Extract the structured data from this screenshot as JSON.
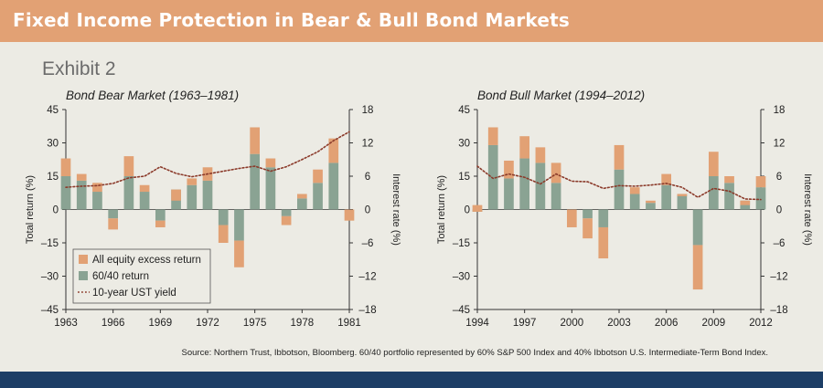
{
  "header": {
    "title": "Fixed Income Protection in Bear & Bull Bond Markets"
  },
  "exhibit_label": "Exhibit 2",
  "source_note": "Source: Northern Trust, Ibbotson, Bloomberg. 60/40 portfolio represented by 60% S&P 500 Index and 40% Ibbotson U.S. Intermediate-Term Bond Index.",
  "colors": {
    "equity_excess": "#e2a174",
    "sixty_forty": "#8aa393",
    "ust_yield": "#8b3a2a",
    "header_bg": "#e2a174",
    "footer_bar": "#1d3e66",
    "background": "#ecebe4"
  },
  "legend": {
    "equity": "All equity excess return",
    "sixty_forty": "60/40 return",
    "ust": "10-year UST yield"
  },
  "chart_data": [
    {
      "type": "bar",
      "title": "Bond Bear Market (1963–1981)",
      "ylabel": "Total return (%)",
      "y2label": "Interest rate (%)",
      "ylim": [
        -45,
        45
      ],
      "y2lim": [
        -18,
        18
      ],
      "yticks": [
        "45",
        "30",
        "15",
        "0",
        "–15",
        "–30",
        "–45"
      ],
      "y2ticks": [
        "18",
        "12",
        "6",
        "0",
        "–6",
        "–12",
        "–18"
      ],
      "xlim": [
        1963,
        1981
      ],
      "xticks": [
        "1963",
        "1966",
        "1969",
        "1972",
        "1975",
        "1978",
        "1981"
      ],
      "years": [
        1963,
        1964,
        1965,
        1966,
        1967,
        1968,
        1969,
        1970,
        1971,
        1972,
        1973,
        1974,
        1975,
        1976,
        1977,
        1978,
        1979,
        1980,
        1981
      ],
      "series": [
        {
          "name": "60/40 return",
          "values": [
            15,
            13,
            8,
            -4,
            15,
            8,
            -5,
            9,
            11,
            13,
            -7,
            -14,
            25,
            19,
            -3,
            5,
            12,
            21,
            0
          ]
        },
        {
          "name": "All equity excess return",
          "values": [
            8,
            3,
            4,
            -5,
            9,
            3,
            -3,
            -5,
            3,
            6,
            -8,
            -12,
            12,
            4,
            -4,
            2,
            6,
            11,
            -5
          ]
        },
        {
          "name": "10-year UST yield",
          "values": [
            4.0,
            4.2,
            4.3,
            4.7,
            5.7,
            6.0,
            7.7,
            6.5,
            5.9,
            6.4,
            6.9,
            7.4,
            7.8,
            6.9,
            7.7,
            9.0,
            10.4,
            12.4,
            14.0
          ]
        }
      ]
    },
    {
      "type": "bar",
      "title": "Bond Bull Market (1994–2012)",
      "ylabel": "Total return (%)",
      "y2label": "Interest rate (%)",
      "ylim": [
        -45,
        45
      ],
      "y2lim": [
        -18,
        18
      ],
      "yticks": [
        "45",
        "30",
        "15",
        "0",
        "–15",
        "–30",
        "–45"
      ],
      "y2ticks": [
        "18",
        "12",
        "6",
        "0",
        "–6",
        "–12",
        "–18"
      ],
      "xlim": [
        1994,
        2012
      ],
      "xticks": [
        "1994",
        "1997",
        "2000",
        "2003",
        "2006",
        "2009",
        "2012"
      ],
      "years": [
        1994,
        1995,
        1996,
        1997,
        1998,
        1999,
        2000,
        2001,
        2002,
        2003,
        2004,
        2005,
        2006,
        2007,
        2008,
        2009,
        2010,
        2011,
        2012
      ],
      "series": [
        {
          "name": "60/40 return",
          "values": [
            -1,
            29,
            14,
            23,
            21,
            12,
            0,
            -4,
            -8,
            18,
            7,
            3,
            11,
            7,
            -16,
            15,
            12,
            4,
            10
          ]
        },
        {
          "name": "All equity excess return",
          "values": [
            3,
            8,
            8,
            10,
            7,
            9,
            -8,
            -9,
            -14,
            11,
            3,
            1,
            5,
            -1,
            -20,
            11,
            3,
            -2,
            5
          ]
        },
        {
          "name": "10-year UST yield",
          "values": [
            7.8,
            5.6,
            6.4,
            5.8,
            4.6,
            6.4,
            5.1,
            5.0,
            3.8,
            4.3,
            4.2,
            4.4,
            4.7,
            4.0,
            2.2,
            3.8,
            3.3,
            1.9,
            1.8
          ]
        }
      ]
    }
  ]
}
